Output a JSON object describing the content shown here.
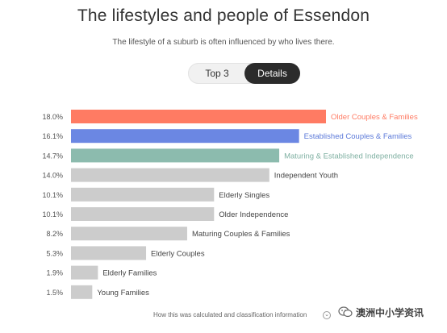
{
  "header": {
    "title": "The lifestyles and people of Essendon",
    "subtitle": "The lifestyle of a suburb is often influenced by who lives there."
  },
  "toggle": {
    "top3_label": "Top 3",
    "details_label": "Details",
    "active": "Details"
  },
  "chart_data": {
    "type": "bar",
    "orientation": "horizontal",
    "categories": [
      "Older Couples & Families",
      "Established Couples & Families",
      "Maturing & Established Independence",
      "Independent Youth",
      "Elderly Singles",
      "Older Independence",
      "Maturing Couples & Families",
      "Elderly Couples",
      "Elderly Families",
      "Young Families"
    ],
    "values": [
      18.0,
      16.1,
      14.7,
      14.0,
      10.1,
      10.1,
      8.2,
      5.3,
      1.9,
      1.5
    ],
    "value_labels": [
      "18.0%",
      "16.1%",
      "14.7%",
      "14.0%",
      "10.1%",
      "10.1%",
      "8.2%",
      "5.3%",
      "1.9%",
      "1.5%"
    ],
    "colors": [
      "#ff7b63",
      "#6b87e3",
      "#8cbbae",
      "#cccccc",
      "#cccccc",
      "#cccccc",
      "#cccccc",
      "#cccccc",
      "#cccccc",
      "#cccccc"
    ],
    "label_colors": [
      "#ff7b63",
      "#5b79d9",
      "#7fb0a2",
      "#444444",
      "#444444",
      "#444444",
      "#444444",
      "#444444",
      "#444444",
      "#444444"
    ],
    "xlim": [
      0,
      18.0
    ],
    "grid": false,
    "legend": "none"
  },
  "footer": {
    "info_link": "How this was calculated and classification information"
  },
  "watermark": {
    "text": "澳洲中小学资讯",
    "icon": "wechat-icon"
  }
}
